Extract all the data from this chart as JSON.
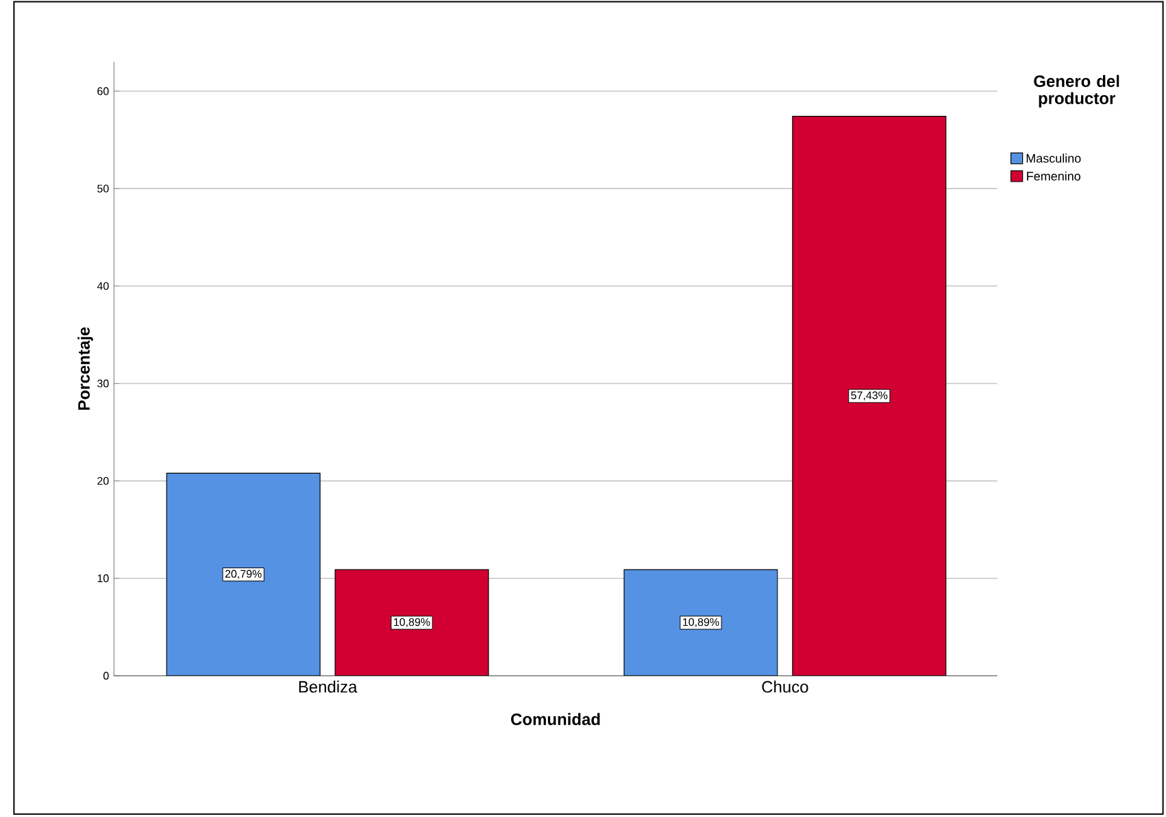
{
  "chart_data": {
    "type": "bar",
    "xlabel": "Comunidad",
    "ylabel": "Porcentaje",
    "legend_title": "Genero del productor",
    "categories": [
      "Bendiza",
      "Chuco"
    ],
    "series": [
      {
        "name": "Masculino",
        "color": "#5592e3",
        "values": [
          20.79,
          10.89
        ],
        "value_labels": [
          "20,79%",
          "10,89%"
        ]
      },
      {
        "name": "Femenino",
        "color": "#d20032",
        "values": [
          10.89,
          57.43
        ],
        "value_labels": [
          "10,89%",
          "57,43%"
        ]
      }
    ],
    "ylim": [
      0,
      63
    ],
    "yticks": [
      0,
      10,
      20,
      30,
      40,
      50,
      60
    ],
    "grid": "y",
    "legend": "top right"
  }
}
